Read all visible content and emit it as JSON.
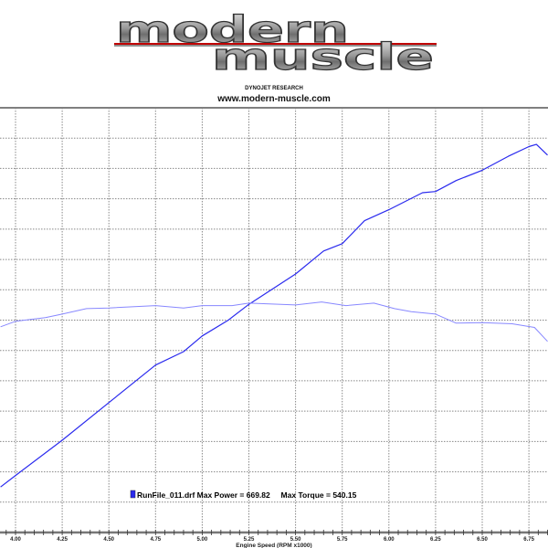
{
  "header": {
    "logo_line1": "modern",
    "logo_line2": "muscle",
    "subtitle": "DYNOJET RESEARCH",
    "website": "www.modern-muscle.com"
  },
  "colors": {
    "power": "#2a2aee",
    "torque": "#8888ff",
    "grid": "#888888",
    "axis": "#777777"
  },
  "chart_data": {
    "type": "line",
    "xlabel": "Engine Speed (RPM x1000)",
    "ylabel": "",
    "xlim": [
      3.92,
      6.85
    ],
    "ylim": [
      350,
      700
    ],
    "x_ticks": [
      "4.00",
      "4.25",
      "4.50",
      "4.75",
      "5.00",
      "5.25",
      "5.50",
      "5.75",
      "6.00",
      "6.25",
      "6.50",
      "6.75"
    ],
    "y_grid_step": 25,
    "grid": true,
    "legend": {
      "text": "RunFile_011.drf Max Power = 669.82     Max Torque = 540.15",
      "placement": "bottom-center"
    },
    "series": [
      {
        "key": "power",
        "color": "#2a2aee",
        "x": [
          3.92,
          4.0,
          4.25,
          4.5,
          4.75,
          4.9,
          5.0,
          5.14,
          5.25,
          5.5,
          5.65,
          5.75,
          5.87,
          6.0,
          6.18,
          6.25,
          6.36,
          6.5,
          6.64,
          6.75,
          6.79,
          6.85
        ],
        "y": [
          387.5,
          397,
          426,
          457,
          488,
          499,
          512,
          525,
          538,
          563,
          582,
          588,
          607,
          616,
          630,
          631,
          640,
          648.5,
          660,
          668,
          669.8,
          661
        ]
      },
      {
        "key": "torque",
        "color": "#8888ff",
        "x": [
          3.92,
          4.0,
          4.16,
          4.25,
          4.38,
          4.5,
          4.75,
          4.9,
          5.0,
          5.16,
          5.25,
          5.5,
          5.64,
          5.77,
          5.92,
          6.03,
          6.12,
          6.25,
          6.36,
          6.5,
          6.66,
          6.78,
          6.85
        ],
        "y": [
          519.5,
          524,
          527,
          530,
          534.5,
          535,
          537,
          535,
          537,
          537,
          539,
          537.5,
          540,
          537,
          539,
          534.5,
          532,
          530,
          522.5,
          523,
          522,
          519,
          507.5
        ]
      }
    ]
  }
}
